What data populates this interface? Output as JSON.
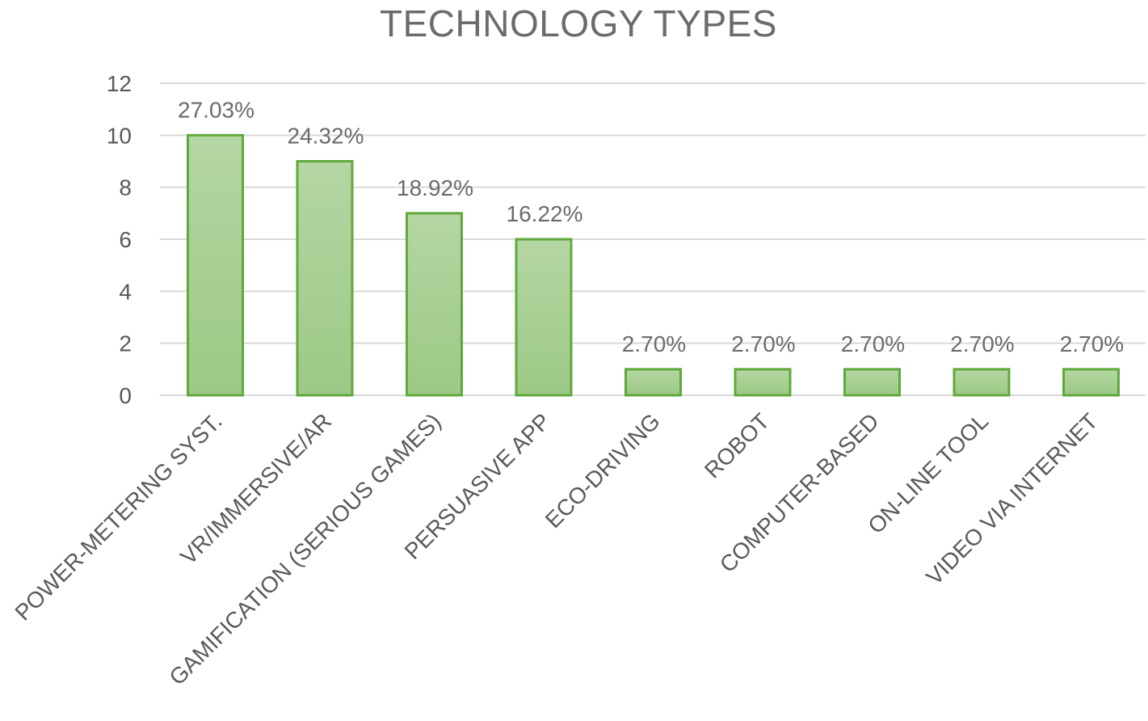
{
  "chart_data": {
    "type": "bar",
    "title": "TECHNOLOGY TYPES",
    "xlabel": "",
    "ylabel": "",
    "categories": [
      "POWER-METERING SYST.",
      "VR/IMMERSIVE/AR",
      "GAMIFICATION (SERIOUS GAMES)",
      "PERSUASIVE APP",
      "ECO-DRIVING",
      "ROBOT",
      "COMPUTER-BASED",
      "ON-LINE TOOL",
      "VIDEO VIA INTERNET"
    ],
    "values": [
      10,
      9,
      7,
      6,
      1,
      1,
      1,
      1,
      1
    ],
    "data_labels": [
      "27.03%",
      "24.32%",
      "18.92%",
      "16.22%",
      "2.70%",
      "2.70%",
      "2.70%",
      "2.70%",
      "2.70%"
    ],
    "ylim": [
      0,
      12
    ],
    "yticks": [
      "0",
      "2",
      "4",
      "6",
      "8",
      "10",
      "12"
    ],
    "grid": true,
    "legend": "none",
    "colors": {
      "bar_fill_top": "#b5d6a3",
      "bar_fill_bottom": "#9cc985",
      "bar_stroke": "#5fa93c",
      "grid": "#d9d9d9",
      "text": "#595959"
    }
  }
}
